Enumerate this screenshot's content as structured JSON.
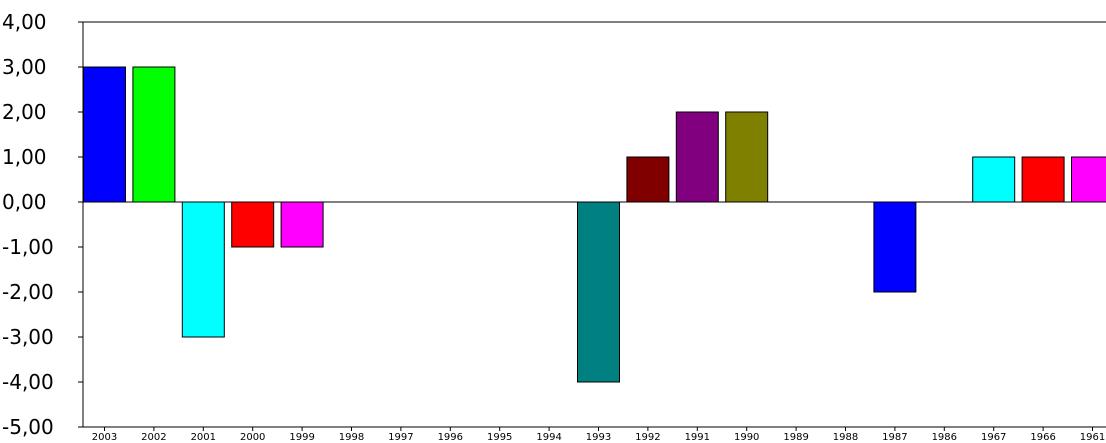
{
  "chart_data": {
    "type": "bar",
    "title": "",
    "xlabel": "",
    "ylabel": "",
    "ylim": [
      -5,
      4
    ],
    "y_ticks": [
      "4,00",
      "3,00",
      "2,00",
      "1,00",
      "0,00",
      "-1,00",
      "-2,00",
      "-3,00",
      "-4,00",
      "-5,00"
    ],
    "grid": false,
    "categories": [
      "2003",
      "2002",
      "2001",
      "2000",
      "1999",
      "1998",
      "1997",
      "1996",
      "1995",
      "1994",
      "1993",
      "1992",
      "1991",
      "1990",
      "1989",
      "1988",
      "1987",
      "1986",
      "1967",
      "1966",
      "1961"
    ],
    "values": [
      3,
      3,
      -3,
      -1,
      -1,
      0,
      0,
      0,
      0,
      0,
      -4,
      1,
      2,
      2,
      0,
      0,
      -2,
      0,
      1,
      1,
      1
    ],
    "colors": [
      "#0000ff",
      "#00ff00",
      "#00ffff",
      "#ff0000",
      "#ff00ff",
      "#808000",
      "#000080",
      "#ff00ff",
      "#008000",
      "#800000",
      "#008080",
      "#800000",
      "#800080",
      "#808000",
      "#000080",
      "#00ff00",
      "#0000ff",
      "#008000",
      "#00ffff",
      "#ff0000",
      "#ff00ff"
    ]
  }
}
